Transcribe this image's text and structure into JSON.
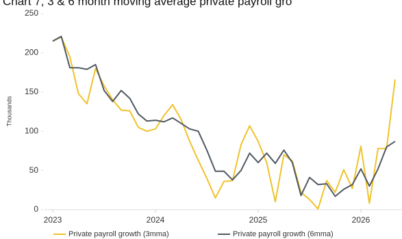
{
  "chart_data": {
    "type": "line",
    "title": "Chart 7, 3 & 6 month moving average private payroll gro",
    "y_label": "Thousands",
    "x": [
      2023,
      2023.083,
      2023.167,
      2023.25,
      2023.333,
      2023.417,
      2023.5,
      2023.583,
      2023.667,
      2023.75,
      2023.833,
      2023.917,
      2024,
      2024.083,
      2024.167,
      2024.25,
      2024.333,
      2024.417,
      2024.5,
      2024.583,
      2024.667,
      2024.75,
      2024.833,
      2024.917,
      2025,
      2025.083,
      2025.167,
      2025.25,
      2025.333,
      2025.417,
      2025.5,
      2025.583,
      2025.667,
      2025.75,
      2025.833,
      2025.917,
      2026,
      2026.083,
      2026.167,
      2026.25,
      2026.333
    ],
    "series": [
      {
        "name": "Private payroll growth (3mma)",
        "color": "#f0c22b",
        "values": [
          215,
          220,
          195,
          148,
          135,
          180,
          158,
          140,
          127,
          126,
          105,
          100,
          103,
          120,
          134,
          115,
          87,
          63,
          40,
          15,
          36,
          37,
          83,
          107,
          87,
          60,
          10,
          70,
          62,
          22,
          13,
          1,
          37,
          22,
          51,
          27,
          81,
          8,
          78,
          78,
          166
        ]
      },
      {
        "name": "Private payroll growth (6mma)",
        "color": "#4f5862",
        "values": [
          215,
          221,
          181,
          181,
          179,
          185,
          152,
          138,
          152,
          142,
          122,
          113,
          114,
          112,
          117,
          110,
          103,
          100,
          76,
          49,
          49,
          38,
          50,
          72,
          60,
          72,
          59,
          76,
          60,
          18,
          41,
          32,
          33,
          17,
          26,
          32,
          52,
          30,
          52,
          80,
          87
        ]
      }
    ],
    "xlim": [
      2022.92,
      2026.4
    ],
    "xticks": [
      2023,
      2024,
      2025,
      2026
    ],
    "ylim": [
      0,
      250
    ],
    "yticks": [
      0,
      50,
      100,
      150,
      200,
      250
    ]
  }
}
